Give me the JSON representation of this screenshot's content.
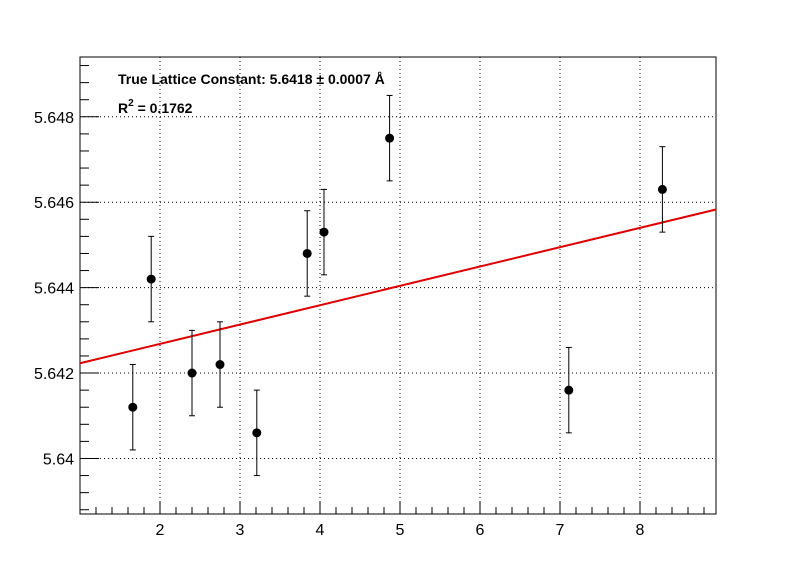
{
  "chart_data": {
    "type": "scatter",
    "title": "",
    "xlabel": "",
    "ylabel": "",
    "xlim": [
      1.0,
      8.95
    ],
    "ylim": [
      5.6387,
      5.6494
    ],
    "grid": true,
    "x_ticks": [
      2,
      3,
      4,
      5,
      6,
      7,
      8
    ],
    "x_tick_labels": [
      "2",
      "3",
      "4",
      "5",
      "6",
      "7",
      "8"
    ],
    "y_ticks": [
      5.64,
      5.642,
      5.644,
      5.646,
      5.648
    ],
    "y_tick_labels": [
      "5.64",
      "5.642",
      "5.644",
      "5.646",
      "5.648"
    ],
    "series": [
      {
        "type": "scatter",
        "color": "#000000",
        "x": [
          1.66,
          1.89,
          2.4,
          2.75,
          3.21,
          3.84,
          4.05,
          4.87,
          7.11,
          8.28
        ],
        "y": [
          5.6412,
          5.6442,
          5.642,
          5.6422,
          5.6406,
          5.6448,
          5.6453,
          5.6475,
          5.6416,
          5.6463
        ],
        "yerr": [
          0.001,
          0.001,
          0.001,
          0.001,
          0.001,
          0.001,
          0.001,
          0.001,
          0.001,
          0.001
        ]
      },
      {
        "type": "line",
        "color": "#dd0000",
        "x": [
          1.0,
          8.95
        ],
        "y": [
          5.64223,
          5.64583
        ]
      }
    ],
    "annotations": {
      "lattice_text": "True Lattice Constant: 5.6418 ± 0.0007 Å",
      "r2_prefix": "R",
      "r2_sup": "2",
      "r2_value": " = 0.1762"
    }
  }
}
